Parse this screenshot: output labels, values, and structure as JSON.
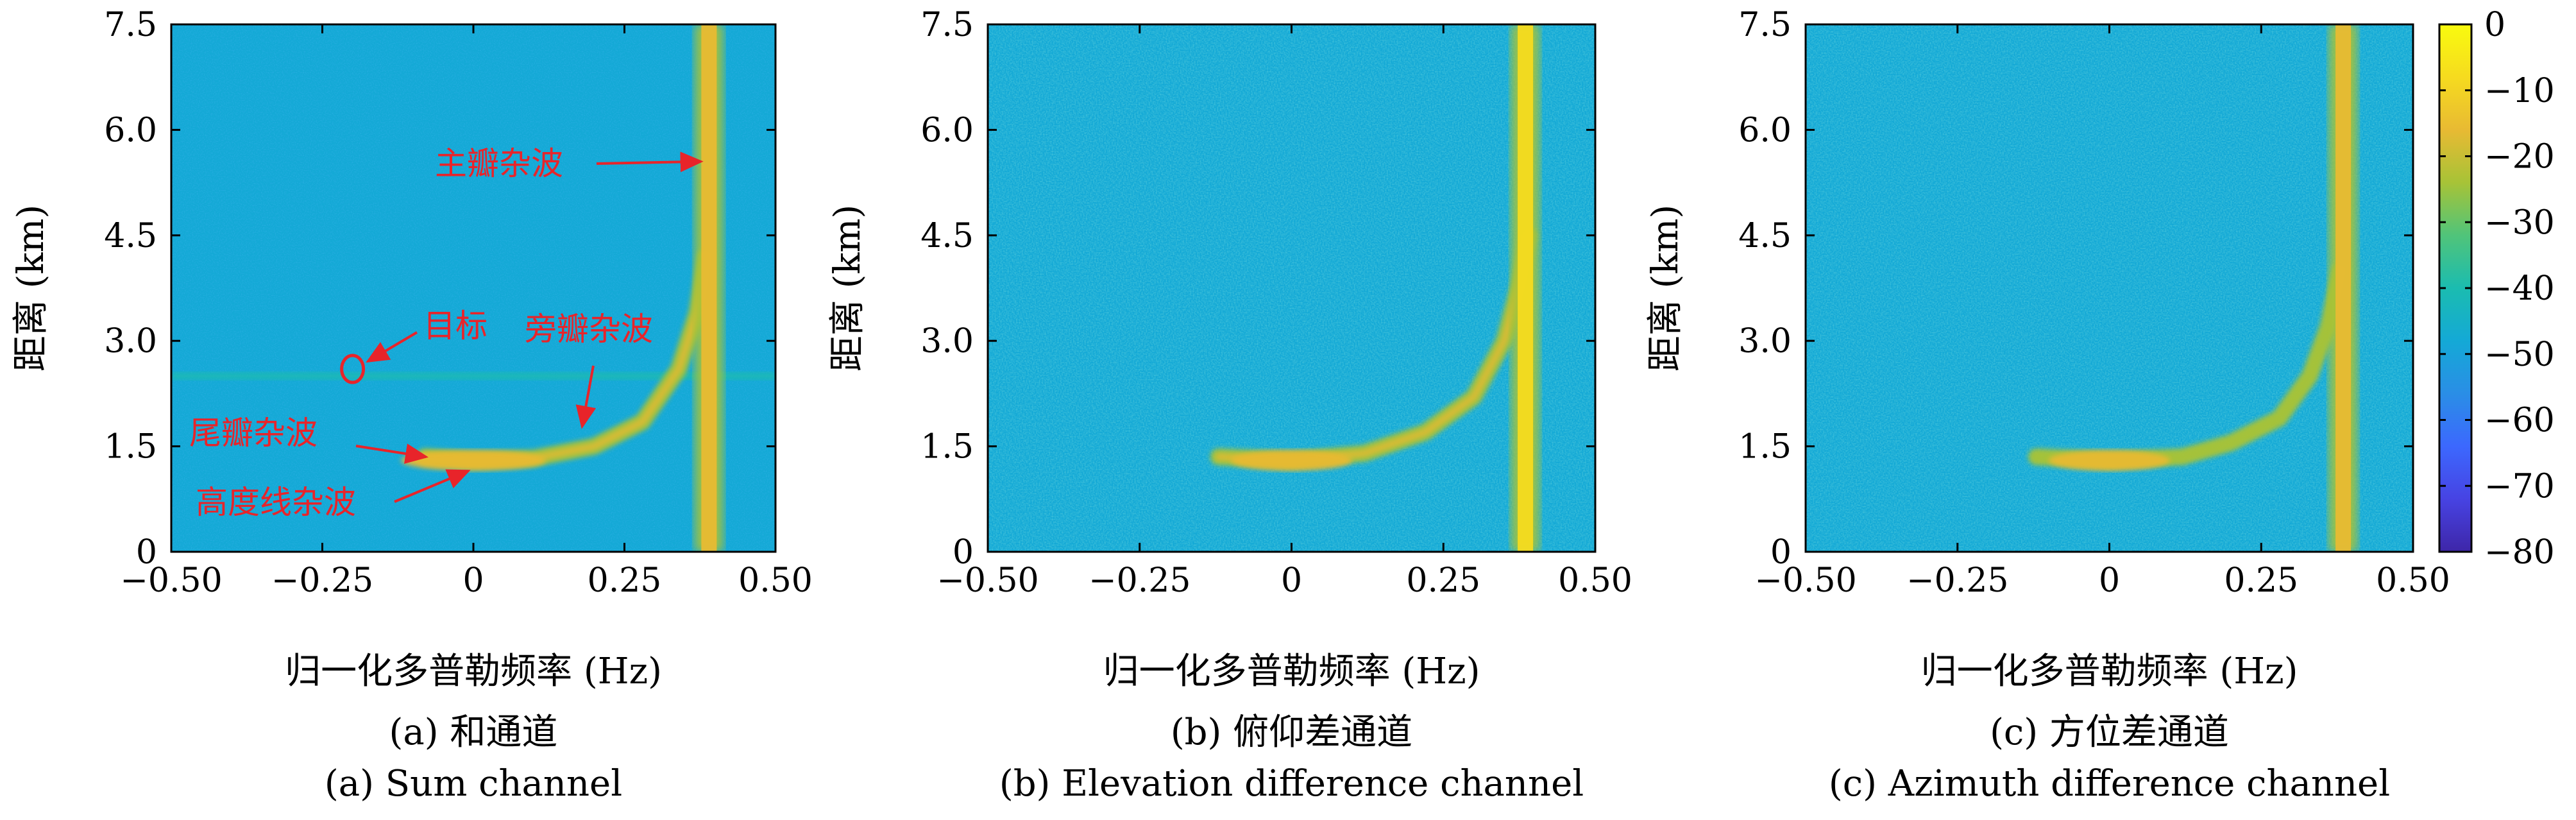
{
  "chart_data": [
    {
      "type": "heatmap",
      "panel_id": "a",
      "xlabel": "归一化多普勒频率 (Hz)",
      "ylabel": "距离 (km)",
      "xlim": [
        -0.5,
        0.5
      ],
      "ylim": [
        0,
        7.5
      ],
      "x_ticks": [
        "−0.50",
        "−0.25",
        "0",
        "0.25",
        "0.50"
      ],
      "x_tick_values": [
        -0.5,
        -0.25,
        0,
        0.25,
        0.5
      ],
      "y_ticks": [
        "0",
        "1.5",
        "3.0",
        "4.5",
        "6.0",
        "7.5"
      ],
      "y_tick_values": [
        0,
        1.5,
        3.0,
        4.5,
        6.0,
        7.5
      ],
      "caption_cn": "(a) 和通道",
      "caption_en": "(a) Sum channel",
      "background_level_db": -50,
      "mainlobe_clutter": {
        "doppler_hz": 0.39,
        "level_db": -15
      },
      "sidelobe_clutter_curve": [
        [
          -0.08,
          1.35
        ],
        [
          0.0,
          1.3
        ],
        [
          0.1,
          1.33
        ],
        [
          0.2,
          1.5
        ],
        [
          0.28,
          1.85
        ],
        [
          0.34,
          2.6
        ],
        [
          0.37,
          3.4
        ],
        [
          0.385,
          4.2
        ]
      ],
      "sidelobe_clutter_level_db": -25,
      "altitude_line_clutter": {
        "range_km": 1.3,
        "doppler_span": [
          -0.12,
          0.12
        ],
        "level_db": -15
      },
      "horizontal_line": {
        "range_km": 2.5,
        "level_db": -38
      },
      "annotations": [
        {
          "text": "主瓣杂波",
          "target": [
            0.385,
            5.55
          ]
        },
        {
          "text": "目标",
          "target": [
            -0.2,
            2.6
          ]
        },
        {
          "text": "旁瓣杂波",
          "target": [
            0.18,
            1.6
          ]
        },
        {
          "text": "尾瓣杂波",
          "target": [
            -0.07,
            1.35
          ]
        },
        {
          "text": "高度线杂波",
          "target": [
            0.0,
            1.15
          ]
        }
      ]
    },
    {
      "type": "heatmap",
      "panel_id": "b",
      "xlabel": "归一化多普勒频率 (Hz)",
      "ylabel": "距离 (km)",
      "xlim": [
        -0.5,
        0.5
      ],
      "ylim": [
        0,
        7.5
      ],
      "x_ticks": [
        "−0.50",
        "−0.25",
        "0",
        "0.25",
        "0.50"
      ],
      "x_tick_values": [
        -0.5,
        -0.25,
        0,
        0.25,
        0.5
      ],
      "y_ticks": [
        "0",
        "1.5",
        "3.0",
        "4.5",
        "6.0",
        "7.5"
      ],
      "y_tick_values": [
        0,
        1.5,
        3.0,
        4.5,
        6.0,
        7.5
      ],
      "caption_cn": "(b) 俯仰差通道",
      "caption_en": "(b) Elevation difference channel",
      "background_level_db": -45,
      "mainlobe_clutter": {
        "doppler_hz": 0.385,
        "level_db": -12
      },
      "sidelobe_clutter_curve": [
        [
          -0.12,
          1.35
        ],
        [
          0.0,
          1.3
        ],
        [
          0.12,
          1.4
        ],
        [
          0.22,
          1.7
        ],
        [
          0.3,
          2.2
        ],
        [
          0.35,
          3.0
        ],
        [
          0.375,
          3.8
        ],
        [
          0.39,
          4.5
        ]
      ],
      "sidelobe_clutter_level_db": -22,
      "altitude_line_clutter": {
        "range_km": 1.3,
        "doppler_span": [
          -0.1,
          0.1
        ],
        "level_db": -14
      }
    },
    {
      "type": "heatmap",
      "panel_id": "c",
      "xlabel": "归一化多普勒频率 (Hz)",
      "ylabel": "距离 (km)",
      "xlim": [
        -0.5,
        0.5
      ],
      "ylim": [
        0,
        7.5
      ],
      "x_ticks": [
        "−0.50",
        "−0.25",
        "0",
        "0.25",
        "0.50"
      ],
      "x_tick_values": [
        -0.5,
        -0.25,
        0,
        0.25,
        0.5
      ],
      "y_ticks": [
        "0",
        "1.5",
        "3.0",
        "4.5",
        "6.0",
        "7.5"
      ],
      "y_tick_values": [
        0,
        1.5,
        3.0,
        4.5,
        6.0,
        7.5
      ],
      "caption_cn": "(c) 方位差通道",
      "caption_en": "(c) Azimuth difference channel",
      "background_level_db": -45,
      "mainlobe_clutter": {
        "doppler_hz": 0.385,
        "level_db": -14
      },
      "sidelobe_clutter_curve": [
        [
          -0.12,
          1.35
        ],
        [
          0.0,
          1.3
        ],
        [
          0.12,
          1.35
        ],
        [
          0.2,
          1.55
        ],
        [
          0.28,
          1.9
        ],
        [
          0.33,
          2.5
        ],
        [
          0.36,
          3.2
        ],
        [
          0.38,
          4.0
        ]
      ],
      "sidelobe_clutter_level_db": -28,
      "altitude_line_clutter": {
        "range_km": 1.3,
        "doppler_span": [
          -0.1,
          0.1
        ],
        "level_db": -20
      }
    }
  ],
  "colorbar": {
    "ticks": [
      "0",
      "−10",
      "−20",
      "−30",
      "−40",
      "−50",
      "−60",
      "−70",
      "−80"
    ],
    "tick_values": [
      0,
      -10,
      -20,
      -30,
      -40,
      -50,
      -60,
      -70,
      -80
    ],
    "range": [
      -80,
      0
    ],
    "colors": [
      "#3e26a8",
      "#4743e3",
      "#3c68fe",
      "#2a8ee6",
      "#14a9d6",
      "#1bbcb0",
      "#50c47a",
      "#a7c337",
      "#e8ba33",
      "#f6db1f",
      "#f9fb0e"
    ]
  }
}
